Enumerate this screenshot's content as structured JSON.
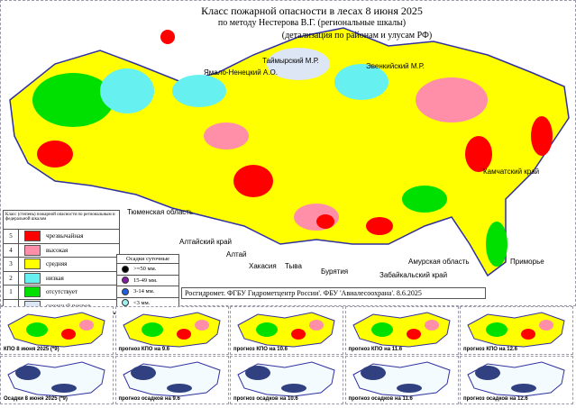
{
  "title": {
    "line1": "Класс пожарной опасности в лесах 8  июня 2025",
    "line2": "по методу Нестерова В.Г. (региональные шкалы)",
    "line3": "(детализация по районам и улусам РФ)"
  },
  "regions": [
    "Ямало-Ненецкий А.О.",
    "Таймырский М.Р.",
    "Эвенкийский М.Р.",
    "Камчатский край",
    "Тюменская область",
    "Алтайский край",
    "Алтай",
    "Хакасия",
    "Тыва",
    "Бурятия",
    "Забайкальский край",
    "Амурская область",
    "Приморье"
  ],
  "legend": {
    "header": "Класс (степень) пожарной опасности по региональным и федеральной шкалам",
    "items": [
      {
        "n": "5",
        "label": "чрезвычайная",
        "color": "#ff0000"
      },
      {
        "n": "4",
        "label": "высокая",
        "color": "#ff8fa8"
      },
      {
        "n": "3",
        "label": "средняя",
        "color": "#ffff00"
      },
      {
        "n": "2",
        "label": "низкая",
        "color": "#66f0f0"
      },
      {
        "n": "1",
        "label": "отсутствует",
        "color": "#00e000"
      },
      {
        "n": "",
        "label": "снежный покров",
        "color": "#dde6f5"
      }
    ]
  },
  "precip": {
    "header": "Осадки суточные",
    "items": [
      {
        "label": ">=50 мм.",
        "color": "#000000"
      },
      {
        "label": "15-49 мм.",
        "color": "#8020a0"
      },
      {
        "label": "3-14 мм.",
        "color": "#2060e0"
      },
      {
        "label": "<3 мм.",
        "color": "#a0f0f0"
      }
    ]
  },
  "footer": "Росгидромет. ФГБУ Гидрометцентр России'. ФБУ 'Авиалесоохрана'. 8.6.2025",
  "thumbs_fire": [
    "КПО 8  июня 2025 (*9)",
    "прогноз КПО на 9.6",
    "прогноз КПО на 10.6",
    "прогноз КПО на 11.6",
    "прогноз КПО на 12.6"
  ],
  "thumbs_precip": [
    "Осадки 8  июня 2025 (*9)",
    "прогноз осадков на 9.6",
    "прогноз осадков на 10.6",
    "прогноз осадков на 11.6",
    "прогноз осадков на 12.6"
  ]
}
